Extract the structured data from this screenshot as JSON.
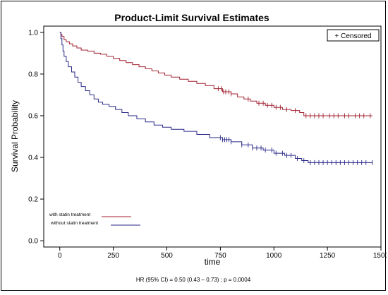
{
  "chart_data": {
    "type": "line",
    "title": "Product-Limit Survival Estimates",
    "xlabel": "time",
    "ylabel": "Survival Probability",
    "xlim": [
      -75,
      1500
    ],
    "ylim": [
      -0.03,
      1.03
    ],
    "x_ticks": [
      "0",
      "250",
      "500",
      "750",
      "1000",
      "1250",
      "1500"
    ],
    "y_ticks": [
      "0.0",
      "0.2",
      "0.4",
      "0.6",
      "0.8",
      "1.0"
    ],
    "grid": false,
    "legend_box": "+ Censored",
    "legend_position": "top-right",
    "series_labels_position": "bottom-left",
    "footnote": "HR (95%  CI) = 0.50 (0.43 – 0.73) ; p = 0.0004",
    "series": [
      {
        "name": "with statin treatment",
        "color": "#a02030",
        "points": [
          [
            0,
            1.0
          ],
          [
            5,
            0.99
          ],
          [
            10,
            0.98
          ],
          [
            20,
            0.965
          ],
          [
            30,
            0.955
          ],
          [
            45,
            0.945
          ],
          [
            60,
            0.935
          ],
          [
            80,
            0.925
          ],
          [
            100,
            0.915
          ],
          [
            130,
            0.91
          ],
          [
            160,
            0.9
          ],
          [
            190,
            0.895
          ],
          [
            220,
            0.885
          ],
          [
            250,
            0.875
          ],
          [
            280,
            0.865
          ],
          [
            310,
            0.855
          ],
          [
            340,
            0.845
          ],
          [
            370,
            0.835
          ],
          [
            400,
            0.825
          ],
          [
            430,
            0.815
          ],
          [
            460,
            0.805
          ],
          [
            490,
            0.795
          ],
          [
            520,
            0.785
          ],
          [
            560,
            0.775
          ],
          [
            600,
            0.765
          ],
          [
            640,
            0.755
          ],
          [
            680,
            0.745
          ],
          [
            720,
            0.73
          ],
          [
            760,
            0.715
          ],
          [
            800,
            0.705
          ],
          [
            830,
            0.69
          ],
          [
            860,
            0.68
          ],
          [
            890,
            0.67
          ],
          [
            920,
            0.66
          ],
          [
            960,
            0.65
          ],
          [
            1000,
            0.64
          ],
          [
            1040,
            0.63
          ],
          [
            1080,
            0.625
          ],
          [
            1120,
            0.615
          ],
          [
            1140,
            0.6
          ],
          [
            1460,
            0.6
          ]
        ],
        "censored_x": [
          740,
          755,
          765,
          775,
          790,
          800,
          880,
          930,
          950,
          970,
          990,
          1010,
          1030,
          1060,
          1100,
          1150,
          1170,
          1190,
          1210,
          1230,
          1260,
          1280,
          1300,
          1330,
          1350,
          1380,
          1400,
          1420,
          1450
        ]
      },
      {
        "name": "without statin treatment",
        "color": "#2a2a8a",
        "points": [
          [
            0,
            1.0
          ],
          [
            5,
            0.97
          ],
          [
            10,
            0.94
          ],
          [
            15,
            0.91
          ],
          [
            20,
            0.885
          ],
          [
            30,
            0.86
          ],
          [
            40,
            0.835
          ],
          [
            55,
            0.81
          ],
          [
            70,
            0.785
          ],
          [
            85,
            0.76
          ],
          [
            100,
            0.74
          ],
          [
            120,
            0.72
          ],
          [
            140,
            0.7
          ],
          [
            160,
            0.68
          ],
          [
            180,
            0.665
          ],
          [
            200,
            0.655
          ],
          [
            230,
            0.645
          ],
          [
            260,
            0.63
          ],
          [
            290,
            0.615
          ],
          [
            320,
            0.6
          ],
          [
            360,
            0.585
          ],
          [
            400,
            0.57
          ],
          [
            440,
            0.555
          ],
          [
            480,
            0.545
          ],
          [
            520,
            0.535
          ],
          [
            580,
            0.525
          ],
          [
            640,
            0.51
          ],
          [
            700,
            0.495
          ],
          [
            760,
            0.485
          ],
          [
            800,
            0.475
          ],
          [
            850,
            0.46
          ],
          [
            900,
            0.445
          ],
          [
            950,
            0.435
          ],
          [
            1000,
            0.42
          ],
          [
            1050,
            0.41
          ],
          [
            1100,
            0.395
          ],
          [
            1130,
            0.385
          ],
          [
            1160,
            0.375
          ],
          [
            1460,
            0.375
          ]
        ],
        "censored_x": [
          750,
          760,
          770,
          780,
          790,
          800,
          850,
          880,
          900,
          920,
          940,
          960,
          990,
          1010,
          1040,
          1060,
          1080,
          1110,
          1140,
          1170,
          1190,
          1210,
          1230,
          1250,
          1270,
          1290,
          1310,
          1330,
          1350,
          1370,
          1390,
          1410,
          1430,
          1460
        ]
      }
    ]
  }
}
